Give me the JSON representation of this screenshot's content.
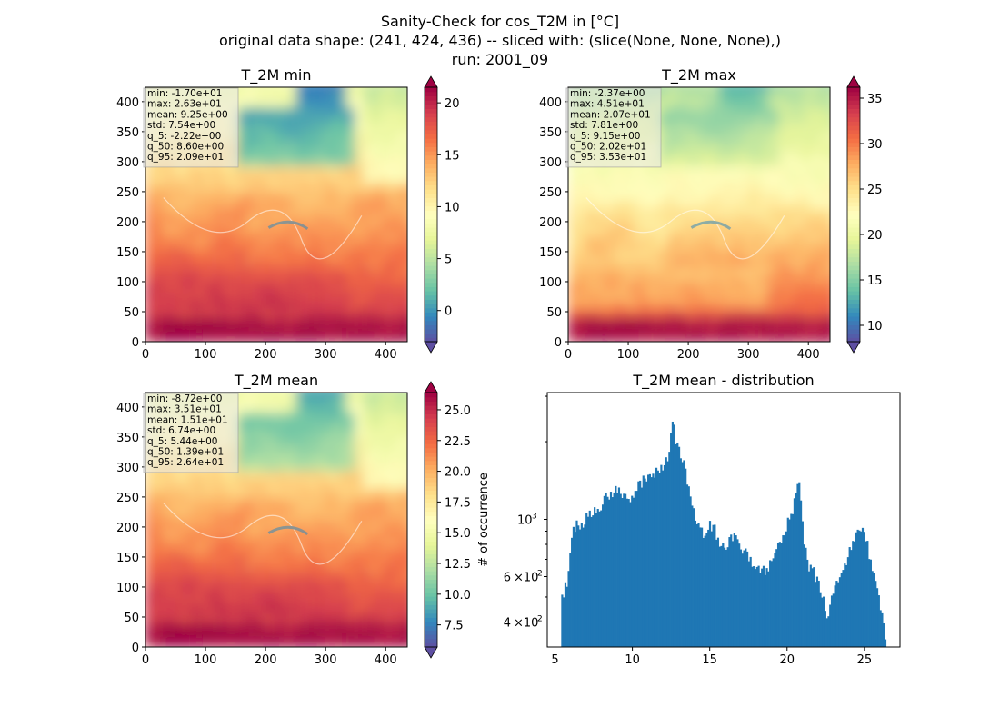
{
  "title": {
    "line1": "Sanity-Check for cos_T2M in [°C]",
    "line2": "original data shape: (241, 424, 436) -- sliced with: (slice(None, None, None),)",
    "line3": "run: 2001_09"
  },
  "colors": {
    "colormap": [
      "#9e0142",
      "#d53e4f",
      "#f46d43",
      "#fdae61",
      "#fee08b",
      "#ffffbf",
      "#e6f598",
      "#abdda4",
      "#66c2a5",
      "#3288bd",
      "#5e4fa2"
    ],
    "bar": "#1f77b4",
    "stats_box": "#e8e8e8"
  },
  "panels": [
    {
      "title": "T_2M min",
      "map_style": "min",
      "x_ticks": [
        "0",
        "100",
        "200",
        "300",
        "400"
      ],
      "y_ticks": [
        "0",
        "50",
        "100",
        "150",
        "200",
        "250",
        "300",
        "350",
        "400"
      ],
      "stats": [
        "min: -1.70e+01",
        "max: 2.63e+01",
        "mean: 9.25e+00",
        "std: 7.54e+00",
        "q_5: -2.22e+00",
        "q_50: 8.60e+00",
        "q_95: 2.09e+01"
      ],
      "colorbar": {
        "vmin": -3,
        "vmax": 21.5,
        "ticks": [
          0,
          5,
          10,
          15,
          20
        ],
        "tick_labels": [
          "0",
          "5",
          "10",
          "15",
          "20"
        ],
        "extend": "both"
      }
    },
    {
      "title": "T_2M max",
      "map_style": "max",
      "x_ticks": [
        "0",
        "100",
        "200",
        "300",
        "400"
      ],
      "y_ticks": [
        "0",
        "50",
        "100",
        "150",
        "200",
        "250",
        "300",
        "350",
        "400"
      ],
      "stats": [
        "min: -2.37e+00",
        "max: 4.51e+01",
        "mean: 2.07e+01",
        "std: 7.81e+00",
        "q_5: 9.15e+00",
        "q_50: 2.02e+01",
        "q_95: 3.53e+01"
      ],
      "colorbar": {
        "vmin": 8.2,
        "vmax": 36.2,
        "ticks": [
          10,
          15,
          20,
          25,
          30,
          35
        ],
        "tick_labels": [
          "10",
          "15",
          "20",
          "25",
          "30",
          "35"
        ],
        "extend": "both"
      }
    },
    {
      "title": "T_2M mean",
      "map_style": "mean",
      "x_ticks": [
        "0",
        "100",
        "200",
        "300",
        "400"
      ],
      "y_ticks": [
        "0",
        "50",
        "100",
        "150",
        "200",
        "250",
        "300",
        "350",
        "400"
      ],
      "stats": [
        "min: -8.72e+00",
        "max: 3.51e+01",
        "mean: 1.51e+01",
        "std: 6.74e+00",
        "q_5: 5.44e+00",
        "q_50: 1.39e+01",
        "q_95: 2.64e+01"
      ],
      "colorbar": {
        "vmin": 5.7,
        "vmax": 26.4,
        "ticks": [
          7.5,
          10,
          12.5,
          15,
          17.5,
          20,
          22.5,
          25
        ],
        "tick_labels": [
          "7.5",
          "10.0",
          "12.5",
          "15.0",
          "17.5",
          "20.0",
          "22.5",
          "25.0"
        ],
        "extend": "both"
      }
    }
  ],
  "chart_data": [
    {
      "type": "heatmap",
      "title": "T_2M min",
      "xlim": [
        0,
        436
      ],
      "ylim": [
        0,
        424
      ],
      "colorbar_range": [
        -3,
        21.5
      ],
      "colorbar_ticks": [
        0,
        5,
        10,
        15,
        20
      ]
    },
    {
      "type": "heatmap",
      "title": "T_2M max",
      "xlim": [
        0,
        436
      ],
      "ylim": [
        0,
        424
      ],
      "colorbar_range": [
        8.2,
        36.2
      ],
      "colorbar_ticks": [
        10,
        15,
        20,
        25,
        30,
        35
      ]
    },
    {
      "type": "heatmap",
      "title": "T_2M mean",
      "xlim": [
        0,
        436
      ],
      "ylim": [
        0,
        424
      ],
      "colorbar_range": [
        5.7,
        26.4
      ],
      "colorbar_ticks": [
        7.5,
        10,
        12.5,
        15,
        17.5,
        20,
        22.5,
        25
      ]
    },
    {
      "type": "bar",
      "title": "T_2M mean - distribution",
      "xlabel": "",
      "ylabel": "# of occurrence",
      "yscale": "log",
      "xlim": [
        4.5,
        27.3
      ],
      "ylim": [
        320,
        3100
      ],
      "x_ticks": [
        5,
        10,
        15,
        20,
        25
      ],
      "y_tick_labels": [
        {
          "value": 400,
          "mantissa": "4",
          "exp": "2"
        },
        {
          "value": 600,
          "mantissa": "6",
          "exp": "2"
        },
        {
          "value": 1000,
          "mantissa": "",
          "exp": "3"
        }
      ],
      "curve": [
        [
          5.4,
          470
        ],
        [
          5.6,
          520
        ],
        [
          5.9,
          620
        ],
        [
          6.1,
          850
        ],
        [
          6.3,
          940
        ],
        [
          6.6,
          950
        ],
        [
          7.0,
          1000
        ],
        [
          7.5,
          1080
        ],
        [
          8.0,
          1150
        ],
        [
          8.5,
          1250
        ],
        [
          9.0,
          1290
        ],
        [
          9.5,
          1220
        ],
        [
          10.0,
          1240
        ],
        [
          10.4,
          1330
        ],
        [
          10.8,
          1450
        ],
        [
          11.2,
          1480
        ],
        [
          11.7,
          1560
        ],
        [
          12.1,
          1680
        ],
        [
          12.4,
          1800
        ],
        [
          12.6,
          2450
        ],
        [
          12.8,
          2000
        ],
        [
          13.1,
          1800
        ],
        [
          13.4,
          1550
        ],
        [
          13.7,
          1280
        ],
        [
          14.0,
          1020
        ],
        [
          14.3,
          930
        ],
        [
          14.6,
          880
        ],
        [
          14.9,
          930
        ],
        [
          15.2,
          940
        ],
        [
          15.5,
          850
        ],
        [
          15.9,
          800
        ],
        [
          16.3,
          820
        ],
        [
          16.8,
          850
        ],
        [
          17.2,
          760
        ],
        [
          17.6,
          680
        ],
        [
          18.0,
          620
        ],
        [
          18.5,
          640
        ],
        [
          19.0,
          660
        ],
        [
          19.4,
          760
        ],
        [
          19.8,
          900
        ],
        [
          20.2,
          1000
        ],
        [
          20.5,
          1200
        ],
        [
          20.8,
          1380
        ],
        [
          21.1,
          840
        ],
        [
          21.4,
          660
        ],
        [
          21.7,
          620
        ],
        [
          22.0,
          580
        ],
        [
          22.3,
          490
        ],
        [
          22.6,
          430
        ],
        [
          22.9,
          500
        ],
        [
          23.3,
          580
        ],
        [
          23.7,
          660
        ],
        [
          24.1,
          780
        ],
        [
          24.5,
          860
        ],
        [
          24.8,
          900
        ],
        [
          25.1,
          820
        ],
        [
          25.4,
          700
        ],
        [
          25.7,
          560
        ],
        [
          26.0,
          460
        ],
        [
          26.3,
          360
        ]
      ],
      "bar_range": [
        5.4,
        26.4
      ],
      "bin_width": 0.105
    }
  ]
}
